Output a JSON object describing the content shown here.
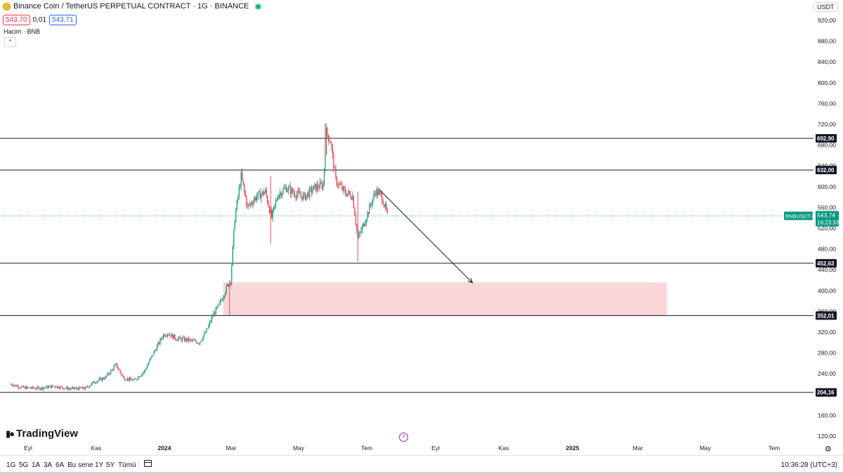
{
  "header": {
    "title": "Binance Coin / TetherUS PERPETUAL CONTRACT · 1G · BINANCE",
    "sell_price": "543,70",
    "spread": "0,01",
    "buy_price": "543,71",
    "volume_label": "Hacim · BNB",
    "currency": "USDT"
  },
  "branding": {
    "logo_text": "TradingView"
  },
  "bottom_bar": {
    "timeframes": [
      "1G",
      "5G",
      "1A",
      "3A",
      "6A",
      "Bu sene",
      "1Y",
      "5Y",
      "Tümü"
    ],
    "clock": "10:36:28 (UTC+3)"
  },
  "chart_data": {
    "type": "candlestick",
    "symbol_label": "BNBUSDT.P",
    "current_price": "543,74",
    "countdown": "16:23:33",
    "y_ticks": [
      "920,00",
      "880,00",
      "840,00",
      "800,00",
      "760,00",
      "720,00",
      "680,00",
      "640,00",
      "600,00",
      "560,00",
      "520,00",
      "480,00",
      "440,00",
      "400,00",
      "360,00",
      "320,00",
      "280,00",
      "240,00",
      "200,00",
      "160,00",
      "120,00"
    ],
    "x_ticks": [
      {
        "label": "Eyl",
        "bold": false
      },
      {
        "label": "Kas",
        "bold": false
      },
      {
        "label": "2024",
        "bold": true
      },
      {
        "label": "Mar",
        "bold": false
      },
      {
        "label": "May",
        "bold": false
      },
      {
        "label": "Tem",
        "bold": false
      },
      {
        "label": "Eyl",
        "bold": false
      },
      {
        "label": "Kas",
        "bold": false
      },
      {
        "label": "2025",
        "bold": true
      },
      {
        "label": "Mar",
        "bold": false
      },
      {
        "label": "May",
        "bold": false
      },
      {
        "label": "Tem",
        "bold": false
      }
    ],
    "horizontal_levels": [
      692.9,
      632.0,
      452.63,
      352.01,
      204.16
    ],
    "level_labels": [
      "692,90",
      "632,00",
      "452,63",
      "352,01",
      "204,16"
    ],
    "zone": {
      "from_date": "2024-02-28",
      "to_date": "2025-04-25",
      "low": 352,
      "high": 416,
      "color": "#f7c9cb"
    },
    "arrow": {
      "from": {
        "date": "2024-07-25",
        "price": 595
      },
      "to": {
        "date": "2024-10-22",
        "price": 415
      }
    },
    "y_range": [
      115,
      930
    ],
    "x_range": [
      "2023-08-13",
      "2025-08-25"
    ],
    "colors": {
      "up": "#089981",
      "down": "#f23645",
      "level": "#131722",
      "current": "#089981"
    },
    "price_path": [
      [
        "2023-08-10",
        220
      ],
      [
        "2023-08-22",
        213
      ],
      [
        "2023-09-05",
        212
      ],
      [
        "2023-09-20",
        216
      ],
      [
        "2023-10-05",
        211
      ],
      [
        "2023-10-20",
        212
      ],
      [
        "2023-10-28",
        224
      ],
      [
        "2023-11-08",
        233
      ],
      [
        "2023-11-18",
        257
      ],
      [
        "2023-11-25",
        232
      ],
      [
        "2023-12-05",
        227
      ],
      [
        "2023-12-15",
        245
      ],
      [
        "2023-12-25",
        285
      ],
      [
        "2024-01-02",
        315
      ],
      [
        "2024-01-06",
        318
      ],
      [
        "2024-01-14",
        308
      ],
      [
        "2024-01-25",
        305
      ],
      [
        "2024-02-05",
        300
      ],
      [
        "2024-02-12",
        322
      ],
      [
        "2024-02-18",
        352
      ],
      [
        "2024-02-24",
        372
      ],
      [
        "2024-03-02",
        405
      ],
      [
        "2024-03-06",
        420
      ],
      [
        "2024-03-10",
        540
      ],
      [
        "2024-03-16",
        620
      ],
      [
        "2024-03-22",
        560
      ],
      [
        "2024-03-30",
        580
      ],
      [
        "2024-04-08",
        590
      ],
      [
        "2024-04-14",
        540
      ],
      [
        "2024-04-20",
        585
      ],
      [
        "2024-04-28",
        598
      ],
      [
        "2024-05-05",
        588
      ],
      [
        "2024-05-15",
        580
      ],
      [
        "2024-05-25",
        598
      ],
      [
        "2024-06-02",
        603
      ],
      [
        "2024-06-05",
        705
      ],
      [
        "2024-06-09",
        688
      ],
      [
        "2024-06-14",
        612
      ],
      [
        "2024-06-22",
        590
      ],
      [
        "2024-06-30",
        582
      ],
      [
        "2024-07-05",
        500
      ],
      [
        "2024-07-10",
        525
      ],
      [
        "2024-07-18",
        570
      ],
      [
        "2024-07-22",
        592
      ],
      [
        "2024-07-28",
        580
      ],
      [
        "2024-08-02",
        545
      ]
    ]
  }
}
